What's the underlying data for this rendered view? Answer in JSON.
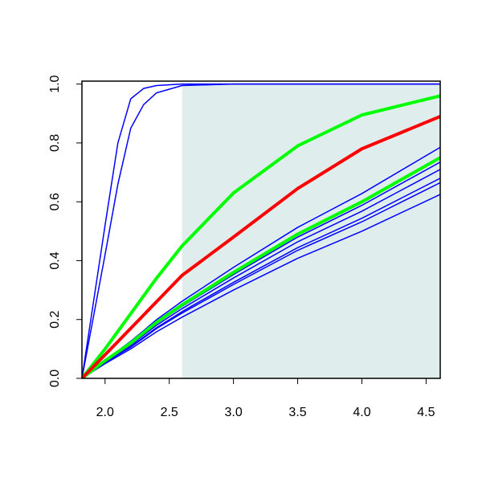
{
  "chart_data": {
    "type": "line",
    "x": [
      1.82,
      2.0,
      2.1,
      2.2,
      2.3,
      2.4,
      2.6,
      3.0,
      3.5,
      4.0,
      4.61
    ],
    "series": [
      {
        "color": "#0000ff",
        "width": 1.5,
        "values": [
          0,
          0.063,
          0.094,
          0.126,
          0.162,
          0.199,
          0.262,
          0.377,
          0.513,
          0.628,
          0.785
        ]
      },
      {
        "color": "#0000ff",
        "width": 1.5,
        "values": [
          0,
          0.059,
          0.088,
          0.118,
          0.152,
          0.186,
          0.245,
          0.353,
          0.48,
          0.588,
          0.735
        ]
      },
      {
        "color": "#0000ff",
        "width": 1.5,
        "values": [
          0,
          0.057,
          0.085,
          0.114,
          0.147,
          0.18,
          0.237,
          0.341,
          0.464,
          0.568,
          0.71
        ]
      },
      {
        "color": "#0000ff",
        "width": 1.5,
        "values": [
          0,
          0.054,
          0.081,
          0.109,
          0.14,
          0.172,
          0.227,
          0.326,
          0.444,
          0.544,
          0.68
        ]
      },
      {
        "color": "#0000ff",
        "width": 1.5,
        "values": [
          0,
          0.053,
          0.08,
          0.106,
          0.137,
          0.169,
          0.222,
          0.319,
          0.435,
          0.532,
          0.665
        ]
      },
      {
        "color": "#0000ff",
        "width": 1.5,
        "values": [
          0,
          0.05,
          0.075,
          0.1,
          0.129,
          0.158,
          0.208,
          0.3,
          0.408,
          0.5,
          0.625
        ]
      },
      {
        "color": "#0000ff",
        "width": 1.5,
        "values": [
          0,
          0.52,
          0.8,
          0.95,
          0.985,
          0.995,
          1,
          1,
          1,
          1,
          1
        ]
      },
      {
        "color": "#0000ff",
        "width": 1.5,
        "values": [
          0,
          0.42,
          0.66,
          0.85,
          0.93,
          0.97,
          0.995,
          1,
          1,
          1,
          1
        ]
      },
      {
        "color": "#00ff00",
        "width": 4,
        "values": [
          0,
          0.06,
          0.09,
          0.12,
          0.155,
          0.19,
          0.25,
          0.36,
          0.49,
          0.6,
          0.75
        ]
      },
      {
        "color": "#00ff00",
        "width": 4,
        "values": [
          0,
          0.1,
          0.16,
          0.22,
          0.28,
          0.34,
          0.45,
          0.63,
          0.79,
          0.895,
          0.96
        ]
      },
      {
        "color": "#ff0000",
        "width": 4,
        "values": [
          0,
          0.08,
          0.125,
          0.17,
          0.215,
          0.26,
          0.35,
          0.48,
          0.645,
          0.78,
          0.89
        ]
      }
    ],
    "shaded_region": {
      "x": [
        2.6,
        4.61
      ],
      "y": [
        0,
        1
      ],
      "color": "#e0eded"
    },
    "xlim": [
      1.82,
      4.61
    ],
    "ylim": [
      0,
      1.01
    ],
    "xticks": [
      {
        "value": 2,
        "label": "2.0"
      },
      2.5,
      {
        "value": 3,
        "label": "3.0"
      },
      3.5,
      {
        "value": 4,
        "label": "4.0"
      },
      4.5
    ],
    "yticks": [
      {
        "value": 0,
        "label": "0.0"
      },
      0.2,
      0.4,
      0.6,
      0.8,
      {
        "value": 1,
        "label": "1.0"
      }
    ],
    "grid": false
  }
}
